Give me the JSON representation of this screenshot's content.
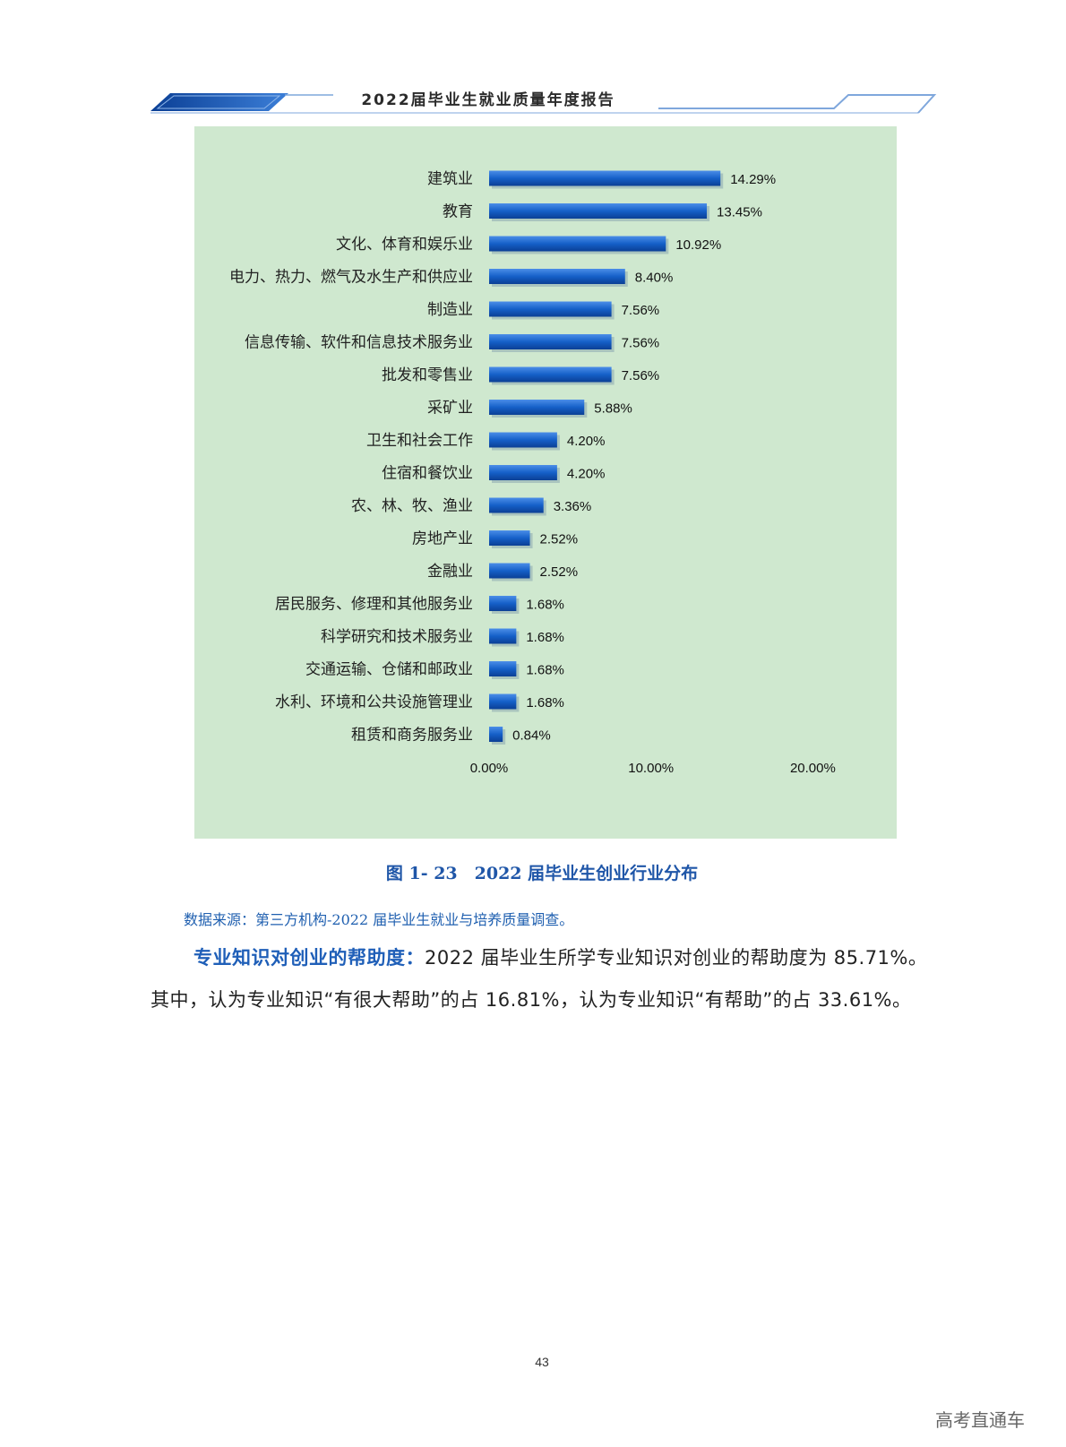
{
  "header": {
    "title": "2022届毕业生就业质量年度报告"
  },
  "chart_data": {
    "type": "bar",
    "orientation": "horizontal",
    "categories": [
      "建筑业",
      "教育",
      "文化、体育和娱乐业",
      "电力、热力、燃气及水生产和供应业",
      "制造业",
      "信息传输、软件和信息技术服务业",
      "批发和零售业",
      "采矿业",
      "卫生和社会工作",
      "住宿和餐饮业",
      "农、林、牧、渔业",
      "房地产业",
      "金融业",
      "居民服务、修理和其他服务业",
      "科学研究和技术服务业",
      "交通运输、仓储和邮政业",
      "水利、环境和公共设施管理业",
      "租赁和商务服务业"
    ],
    "values": [
      14.29,
      13.45,
      10.92,
      8.4,
      7.56,
      7.56,
      7.56,
      5.88,
      4.2,
      4.2,
      3.36,
      2.52,
      2.52,
      1.68,
      1.68,
      1.68,
      1.68,
      0.84
    ],
    "value_labels": [
      "14.29%",
      "13.45%",
      "10.92%",
      "8.40%",
      "7.56%",
      "7.56%",
      "7.56%",
      "5.88%",
      "4.20%",
      "4.20%",
      "3.36%",
      "2.52%",
      "2.52%",
      "1.68%",
      "1.68%",
      "1.68%",
      "1.68%",
      "0.84%"
    ],
    "xlim": [
      0,
      20
    ],
    "xticks": [
      0,
      10,
      20
    ],
    "xtick_labels": [
      "0.00%",
      "10.00%",
      "20.00%"
    ],
    "title": "",
    "xlabel": "",
    "ylabel": "",
    "grid": false,
    "legend": "none",
    "colors": {
      "bar": "#1560c8",
      "background": "#cfe8cf"
    }
  },
  "figure": {
    "caption": "图 1- 23　2022 届毕业生创业行业分布"
  },
  "source_note": "数据来源：第三方机构-2022 届毕业生就业与培养质量调查。",
  "paragraph": {
    "lead": "专业知识对创业的帮助度：",
    "text": "2022 届毕业生所学专业知识对创业的帮助度为 85.71%。其中，认为专业知识“有很大帮助”的占 16.81%，认为专业知识“有帮助”的占 33.61%。"
  },
  "page_number": "43",
  "watermark": "高考直通车"
}
